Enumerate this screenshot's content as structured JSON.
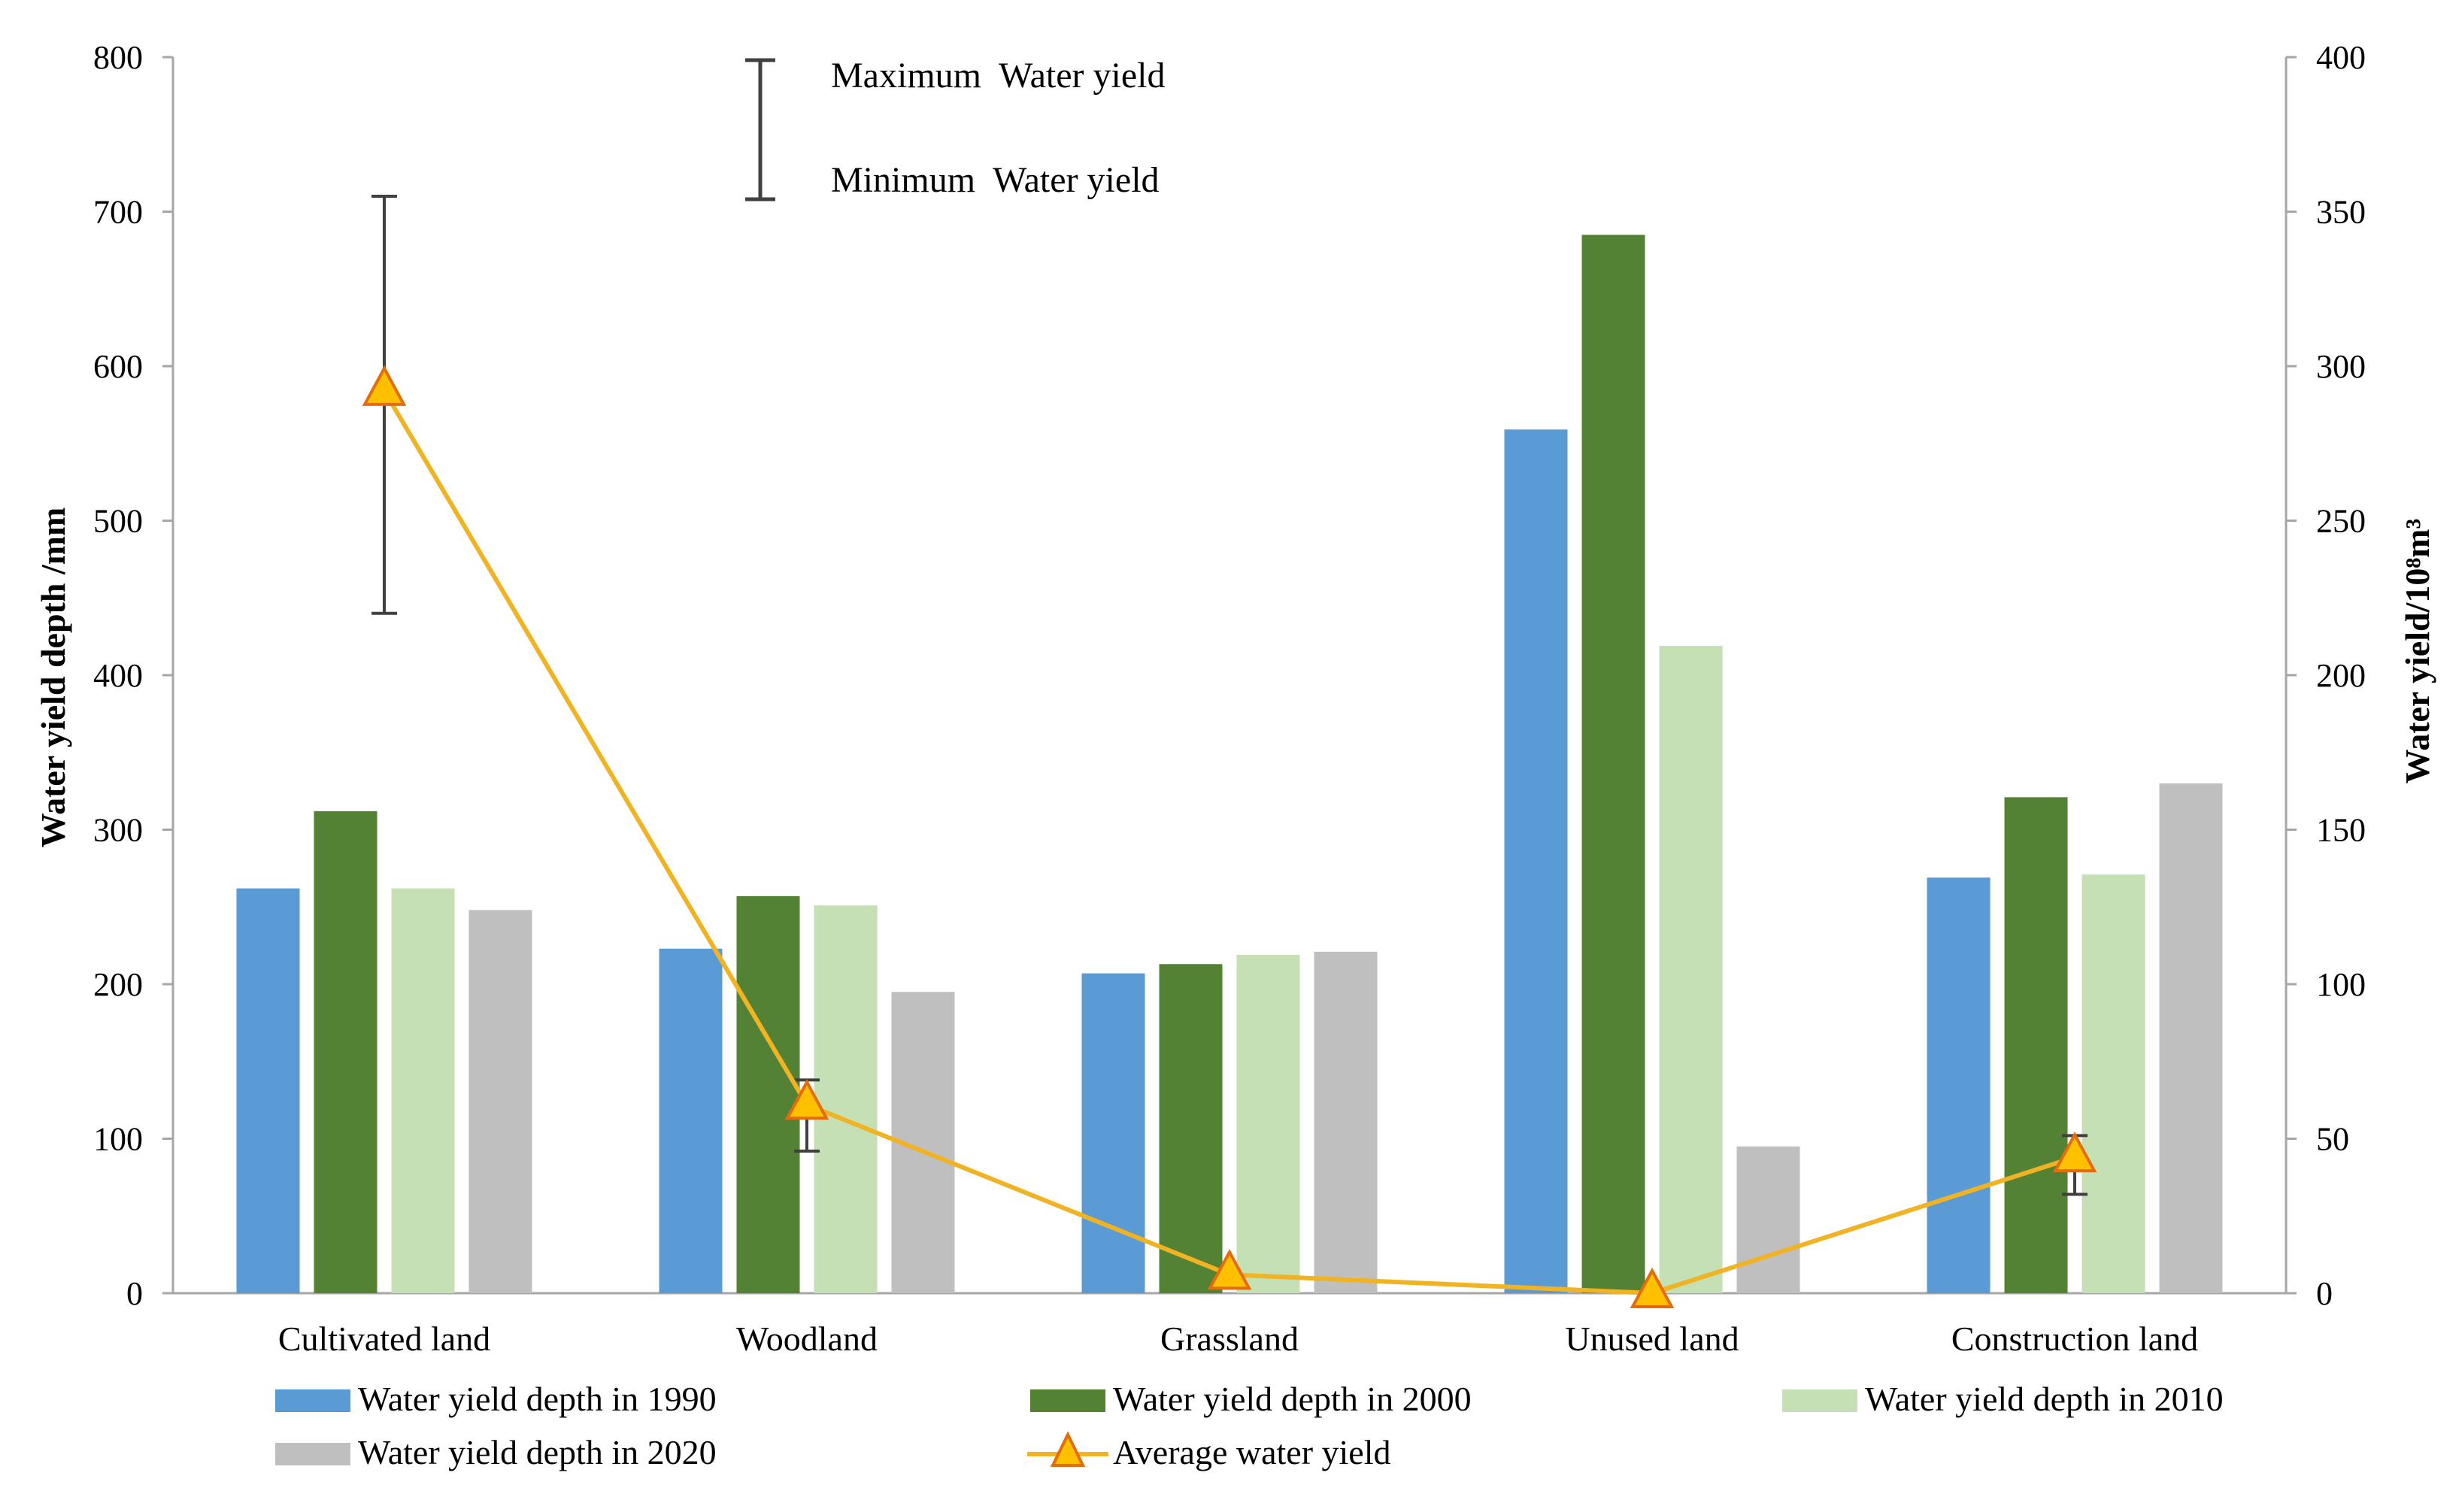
{
  "chart_data": {
    "type": "bar",
    "categories": [
      "Cultivated land",
      "Woodland",
      "Grassland",
      "Unused land",
      "Construction land"
    ],
    "series": [
      {
        "name": "Water yield depth in 1990",
        "axis": "left",
        "color": "#5b9bd5",
        "values": [
          262,
          223,
          207,
          559,
          269
        ]
      },
      {
        "name": "Water yield depth in 2000",
        "axis": "left",
        "color": "#548235",
        "values": [
          312,
          257,
          213,
          685,
          321
        ]
      },
      {
        "name": "Water yield depth in 2010",
        "axis": "left",
        "color": "#c5e0b4",
        "values": [
          262,
          251,
          219,
          419,
          271
        ]
      },
      {
        "name": "Water yield depth in 2020",
        "axis": "left",
        "color": "#bfbfbf",
        "values": [
          248,
          195,
          221,
          95,
          330
        ]
      }
    ],
    "line": {
      "name": "Average water yield",
      "axis": "right",
      "color": "#f0b323",
      "marker_color": "#ffc000",
      "marker_edge": "#e46c0a",
      "values": [
        292,
        61,
        6,
        0,
        44
      ],
      "error_max": [
        355,
        69,
        6,
        0,
        51
      ],
      "error_min": [
        220,
        46,
        6,
        0,
        32
      ]
    },
    "ylabel": "Water yield depth /mm",
    "y2label": "Water yield/10⁸m³",
    "ylim": [
      0,
      800
    ],
    "y2lim": [
      0,
      400
    ],
    "yticks": [
      0,
      100,
      200,
      300,
      400,
      500,
      600,
      700,
      800
    ],
    "y2ticks": [
      0,
      50,
      100,
      150,
      200,
      250,
      300,
      350,
      400
    ],
    "annotation": {
      "max_label": "Maximum  Water yield",
      "min_label": "Minimum  Water yield"
    },
    "legend_position": "bottom",
    "grid": false
  }
}
